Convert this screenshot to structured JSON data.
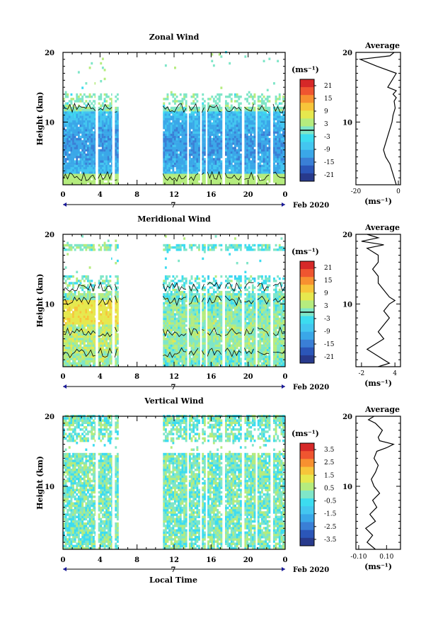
{
  "xlabel": "Local Time",
  "ylabel": "Height (km)",
  "date_label": "Feb 2020",
  "day_label": "7",
  "units": "(ms⁻¹)",
  "avg_units": "(ms⁻¹)",
  "avg_title": "Average",
  "x_ticks": [
    "0",
    "4",
    "8",
    "12",
    "16",
    "20",
    "0"
  ],
  "y_ticks": [
    "10",
    "20"
  ],
  "colormap": [
    "#283a8c",
    "#2b56b8",
    "#3a7fd6",
    "#3aa7e8",
    "#43c6f0",
    "#3cdcf0",
    "#7fe6c8",
    "#b5ec7e",
    "#e6e84e",
    "#f7c53a",
    "#f79030",
    "#ef5530",
    "#d62828"
  ],
  "chart_data": [
    {
      "type": "heatmap",
      "title": "Zonal Wind",
      "xlim": [
        0,
        24
      ],
      "ylim": [
        1,
        20
      ],
      "colorbar": {
        "range": [
          -24,
          24
        ],
        "ticks": [
          "21",
          "15",
          "9",
          "3",
          "-3",
          "-9",
          "-15",
          "-21"
        ],
        "contour_level": 0
      },
      "data_hours": [
        [
          0,
          3.5
        ],
        [
          3.8,
          5.3
        ],
        [
          5.6,
          6.0
        ],
        [
          10.8,
          13.4
        ],
        [
          13.6,
          14.8
        ],
        [
          15.0,
          15.4
        ],
        [
          15.6,
          17.2
        ],
        [
          17.5,
          19.3
        ],
        [
          19.6,
          20.8
        ],
        [
          21.0,
          22.4
        ],
        [
          22.7,
          24.0
        ]
      ],
      "avg_profile": {
        "xlim": [
          -20,
          1
        ],
        "x_ticks": [
          "-20",
          "0"
        ],
        "height": [
          1,
          2,
          3,
          4,
          5,
          6,
          7,
          8,
          9,
          10,
          11,
          12,
          13,
          13.5,
          14,
          14.5,
          15,
          16,
          17,
          18,
          18.5,
          19,
          19.5,
          20
        ],
        "value": [
          -1,
          -2,
          -3,
          -4,
          -6,
          -7,
          -6,
          -5,
          -4,
          -3,
          -2.5,
          -1.5,
          -2,
          -1,
          -2.5,
          -1,
          -5,
          -3,
          -1,
          -10,
          -14,
          -18,
          -4,
          -2
        ]
      }
    },
    {
      "type": "heatmap",
      "title": "Meridional Wind",
      "xlim": [
        0,
        24
      ],
      "ylim": [
        1,
        20
      ],
      "colorbar": {
        "range": [
          -24,
          24
        ],
        "ticks": [
          "21",
          "15",
          "9",
          "3",
          "-3",
          "-9",
          "-15",
          "-21"
        ],
        "contour_level": 0
      },
      "data_hours": [
        [
          0,
          3.5
        ],
        [
          3.8,
          5.3
        ],
        [
          5.6,
          6.0
        ],
        [
          10.8,
          13.4
        ],
        [
          13.6,
          14.8
        ],
        [
          15.0,
          15.4
        ],
        [
          15.6,
          17.2
        ],
        [
          17.5,
          19.3
        ],
        [
          19.6,
          20.8
        ],
        [
          21.0,
          22.4
        ],
        [
          22.7,
          24.0
        ]
      ],
      "avg_profile": {
        "xlim": [
          -3,
          5
        ],
        "x_ticks": [
          "-2",
          "4"
        ],
        "height": [
          1,
          1.5,
          2,
          2.5,
          3,
          3.5,
          4,
          5,
          6,
          7,
          8,
          9,
          10,
          10.5,
          11,
          12,
          13,
          14,
          15,
          16,
          17,
          18,
          18.5,
          19,
          19.5,
          20
        ],
        "value": [
          1,
          3,
          2,
          1,
          0,
          -1,
          0,
          2,
          1,
          2,
          3,
          2,
          3,
          4,
          3,
          2,
          1,
          1,
          0,
          1,
          1,
          -1,
          2,
          -2,
          1,
          -1
        ]
      }
    },
    {
      "type": "heatmap",
      "title": "Vertical Wind",
      "xlim": [
        0,
        24
      ],
      "ylim": [
        1,
        20
      ],
      "colorbar": {
        "range": [
          -4,
          4
        ],
        "ticks": [
          "3.5",
          "2.5",
          "1.5",
          "0.5",
          "-0.5",
          "-1.5",
          "-2.5",
          "-3.5"
        ]
      },
      "data_hours": [
        [
          0,
          3.5
        ],
        [
          3.8,
          5.3
        ],
        [
          5.6,
          6.0
        ],
        [
          10.8,
          13.4
        ],
        [
          13.6,
          14.8
        ],
        [
          15.0,
          15.4
        ],
        [
          15.6,
          17.2
        ],
        [
          17.5,
          19.3
        ],
        [
          19.6,
          20.8
        ],
        [
          21.0,
          22.4
        ],
        [
          22.7,
          24.0
        ]
      ],
      "avg_profile": {
        "xlim": [
          -0.12,
          0.2
        ],
        "x_ticks": [
          "-0.10",
          "0.10"
        ],
        "height": [
          1,
          2,
          3,
          4,
          5,
          6,
          7,
          8,
          9,
          10,
          11,
          12,
          13,
          14,
          15,
          15.5,
          16,
          16.5,
          17,
          18,
          19,
          19.5,
          20
        ],
        "value": [
          0.02,
          -0.04,
          0.0,
          -0.05,
          0.02,
          -0.02,
          0.03,
          0.0,
          0.05,
          0.01,
          -0.01,
          0.02,
          0.04,
          0.01,
          0.03,
          0.1,
          0.15,
          0.05,
          0.04,
          0.07,
          0.02,
          -0.03,
          0.01
        ]
      }
    }
  ]
}
